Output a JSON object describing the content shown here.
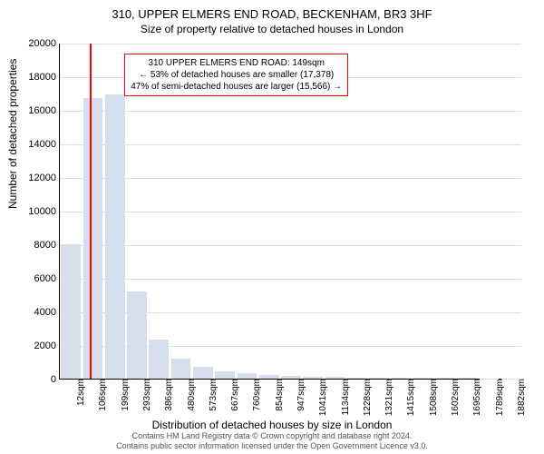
{
  "chart": {
    "type": "bar",
    "title_main": "310, UPPER ELMERS END ROAD, BECKENHAM, BR3 3HF",
    "title_sub": "Size of property relative to detached houses in London",
    "title_fontsize": 13,
    "subtitle_fontsize": 12,
    "y_axis_label": "Number of detached properties",
    "x_axis_label": "Distribution of detached houses by size in London",
    "axis_label_fontsize": 12,
    "background_color": "#ffffff",
    "grid_color": "#d9dfe8",
    "axis_color": "#000000",
    "tick_fontsize": 11,
    "xtick_fontsize": 10,
    "ylim": [
      0,
      20000
    ],
    "ytick_step": 2000,
    "yticks": [
      0,
      2000,
      4000,
      6000,
      8000,
      10000,
      12000,
      14000,
      16000,
      18000,
      20000
    ],
    "xticks": [
      "12sqm",
      "106sqm",
      "199sqm",
      "293sqm",
      "386sqm",
      "480sqm",
      "573sqm",
      "667sqm",
      "760sqm",
      "854sqm",
      "947sqm",
      "1041sqm",
      "1134sqm",
      "1228sqm",
      "1321sqm",
      "1415sqm",
      "1508sqm",
      "1602sqm",
      "1695sqm",
      "1789sqm",
      "1882sqm"
    ],
    "bars": [
      8000,
      16700,
      16900,
      5200,
      2300,
      1200,
      700,
      450,
      350,
      200,
      150,
      120,
      100,
      80,
      70,
      60,
      50,
      40,
      30,
      25,
      20
    ],
    "bar_color": "#d5deed",
    "bar_width_ratio": 0.9,
    "marker_line_color": "#ff0000",
    "marker_line_position": 0.065,
    "info_box": {
      "line1": "310 UPPER ELMERS END ROAD: 149sqm",
      "line2": "← 53% of detached houses are smaller (17,378)",
      "line3": "47% of semi-detached houses are larger (15,566) →",
      "border_color": "#ff0000",
      "bg_color": "#ffffff",
      "fontsize": 10,
      "left_pct": 14,
      "top_pct": 3
    },
    "copyright_line1": "Contains HM Land Registry data © Crown copyright and database right 2024.",
    "copyright_line2": "Contains public sector information licensed under the Open Government Licence v3.0.",
    "copyright_fontsize": 9,
    "copyright_color": "#555555"
  }
}
